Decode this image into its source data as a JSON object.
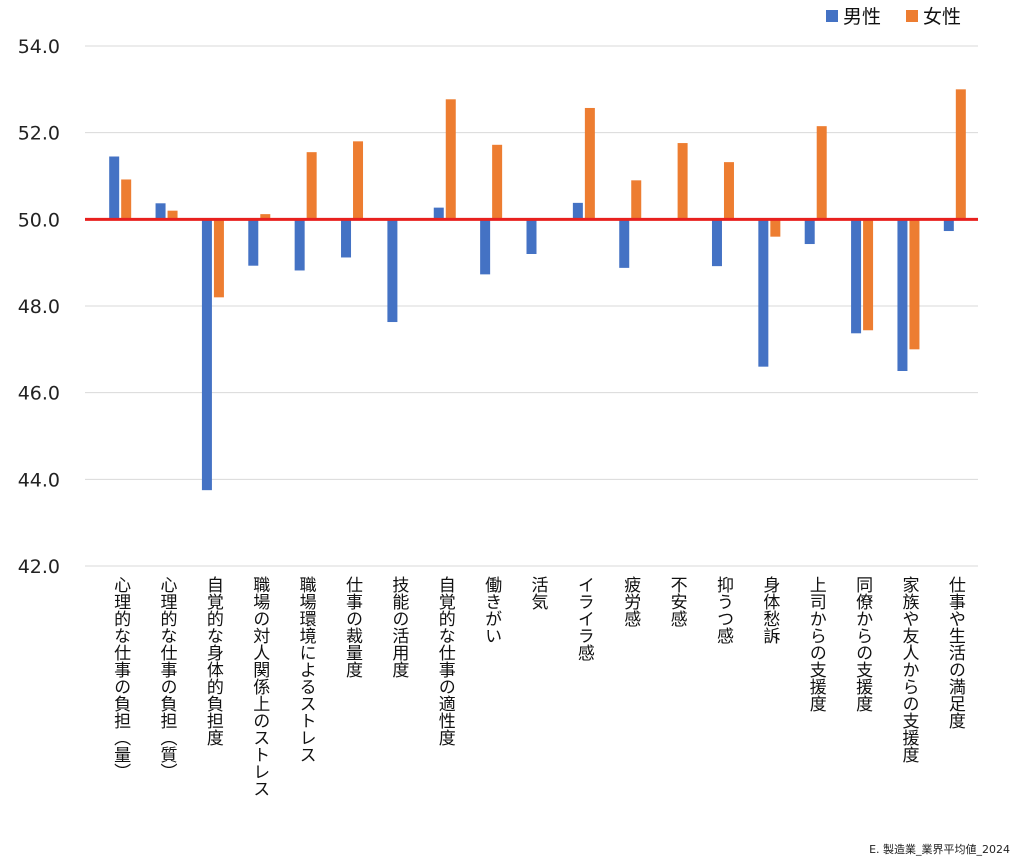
{
  "chart_data": {
    "type": "bar",
    "title": "",
    "xlabel": "",
    "ylabel": "",
    "ylim": [
      42,
      54
    ],
    "yticks": [
      "42.0",
      "44.0",
      "46.0",
      "48.0",
      "50.0",
      "52.0",
      "54.0"
    ],
    "reference_line": {
      "value": 50,
      "color": "#E8201E"
    },
    "categories": [
      "心理的な仕事の負担（量）",
      "心理的な仕事の負担（質）",
      "自覚的な身体的負担度",
      "職場の対人関係上のストレス",
      "職場環境によるストレス",
      "仕事の裁量度",
      "技能の活用度",
      "自覚的な仕事の適性度",
      "働きがい",
      "活気",
      "イライラ感",
      "疲労感",
      "不安感",
      "抑うつ感",
      "身体愁訴",
      "上司からの支援度",
      "同僚からの支援度",
      "家族や友人からの支援度",
      "仕事や生活の満足度"
    ],
    "series": [
      {
        "name": "男性",
        "color": "#4472C4",
        "values": [
          51.45,
          50.37,
          43.75,
          48.93,
          48.82,
          49.12,
          47.63,
          50.27,
          48.73,
          49.2,
          50.38,
          48.88,
          50.0,
          48.92,
          46.6,
          49.43,
          47.37,
          46.5,
          49.73
        ]
      },
      {
        "name": "女性",
        "color": "#ED7D31",
        "values": [
          50.92,
          50.2,
          48.2,
          50.12,
          51.55,
          51.8,
          50.0,
          52.77,
          51.72,
          50.0,
          52.57,
          50.9,
          51.76,
          51.32,
          49.6,
          52.15,
          47.44,
          47.0,
          53.0
        ]
      }
    ],
    "legend_position": "top-right"
  },
  "footnote": "E. 製造業_業界平均値_2024"
}
